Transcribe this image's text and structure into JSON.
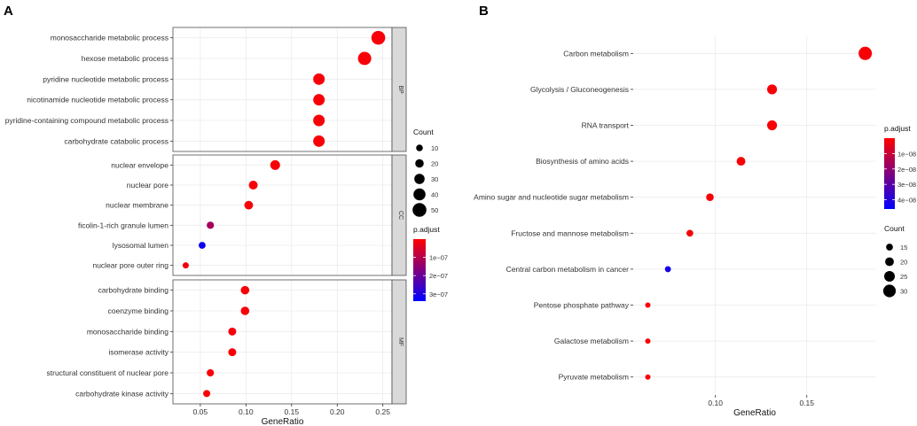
{
  "panels": {
    "A": {
      "letter": "A"
    },
    "B": {
      "letter": "B"
    }
  },
  "colors": {
    "low_padj": "#ff0000",
    "high_padj": "#0000ff",
    "grid": "#ebebeb",
    "panel_border": "#4d4d4d",
    "strip_fill": "#d9d9d9"
  },
  "chart_data": [
    {
      "id": "A",
      "type": "scatter",
      "title": "",
      "xlabel": "GeneRatio",
      "ylabel": "",
      "xlim": [
        0.02,
        0.26
      ],
      "xticks": [
        0.05,
        0.1,
        0.15,
        0.2,
        0.25
      ],
      "xtick_labels": [
        "0.05",
        "0.10",
        "0.15",
        "0.20",
        "0.25"
      ],
      "facets": [
        {
          "strip": "BP",
          "points": [
            {
              "term": "monosaccharide metabolic process",
              "x": 0.245,
              "count": 50,
              "padj": 1e-08
            },
            {
              "term": "hexose metabolic process",
              "x": 0.23,
              "count": 47,
              "padj": 1e-08
            },
            {
              "term": "pyridine nucleotide metabolic process",
              "x": 0.18,
              "count": 37,
              "padj": 1e-08
            },
            {
              "term": "nicotinamide nucleotide metabolic process",
              "x": 0.18,
              "count": 37,
              "padj": 1e-08
            },
            {
              "term": "pyridine-containing compound metabolic process",
              "x": 0.18,
              "count": 37,
              "padj": 1e-08
            },
            {
              "term": "carbohydrate catabolic process",
              "x": 0.18,
              "count": 37,
              "padj": 1e-08
            }
          ]
        },
        {
          "strip": "CC",
          "points": [
            {
              "term": "nuclear envelope",
              "x": 0.132,
              "count": 27,
              "padj": 1e-08
            },
            {
              "term": "nuclear pore",
              "x": 0.108,
              "count": 22,
              "padj": 1e-08
            },
            {
              "term": "nuclear membrane",
              "x": 0.103,
              "count": 21,
              "padj": 1e-08
            },
            {
              "term": "ficolin-1-rich granule lumen",
              "x": 0.061,
              "count": 13,
              "padj": 1.2e-07
            },
            {
              "term": "lysosomal lumen",
              "x": 0.052,
              "count": 11,
              "padj": 3.2e-07
            },
            {
              "term": "nuclear pore outer ring",
              "x": 0.034,
              "count": 7,
              "padj": 2e-08
            }
          ]
        },
        {
          "strip": "MF",
          "points": [
            {
              "term": "carbohydrate binding",
              "x": 0.099,
              "count": 20,
              "padj": 1e-08
            },
            {
              "term": "coenzyme binding",
              "x": 0.099,
              "count": 20,
              "padj": 1e-08
            },
            {
              "term": "monosaccharide binding",
              "x": 0.085,
              "count": 17,
              "padj": 1e-08
            },
            {
              "term": "isomerase activity",
              "x": 0.085,
              "count": 17,
              "padj": 1e-08
            },
            {
              "term": "structural constituent of nuclear pore",
              "x": 0.061,
              "count": 13,
              "padj": 1e-08
            },
            {
              "term": "carbohydrate kinase activity",
              "x": 0.057,
              "count": 12,
              "padj": 1e-08
            }
          ]
        }
      ],
      "legend_count": {
        "title": "Count",
        "min": 7,
        "max": 50,
        "values": [
          10,
          20,
          30,
          40,
          50
        ],
        "labels": [
          "10",
          "20",
          "30",
          "40",
          "50"
        ]
      },
      "legend_color": {
        "title": "p.adjust",
        "min": 0,
        "max": 3.4e-07,
        "values": [
          1e-07,
          2e-07,
          3e-07
        ],
        "labels": [
          "1e−07",
          "2e−07",
          "3e−07"
        ]
      }
    },
    {
      "id": "B",
      "type": "scatter",
      "title": "",
      "xlabel": "GeneRatio",
      "ylabel": "",
      "xlim": [
        0.055,
        0.188
      ],
      "xticks": [
        0.1,
        0.15
      ],
      "xtick_labels": [
        "0.10",
        "0.15"
      ],
      "points": [
        {
          "term": "Carbon metabolism",
          "x": 0.182,
          "count": 32,
          "padj": 1e-09
        },
        {
          "term": "Glycolysis / Gluconeogenesis",
          "x": 0.131,
          "count": 23,
          "padj": 1e-09
        },
        {
          "term": "RNA transport",
          "x": 0.131,
          "count": 23,
          "padj": 1e-09
        },
        {
          "term": "Biosynthesis of amino acids",
          "x": 0.114,
          "count": 20,
          "padj": 1e-09
        },
        {
          "term": "Amino sugar and nucleotide sugar metabolism",
          "x": 0.097,
          "count": 17,
          "padj": 1e-09
        },
        {
          "term": "Fructose and mannose metabolism",
          "x": 0.086,
          "count": 15,
          "padj": 1e-09
        },
        {
          "term": "Central carbon metabolism in cancer",
          "x": 0.074,
          "count": 13,
          "padj": 4.2e-08
        },
        {
          "term": "Pentose phosphate pathway",
          "x": 0.063,
          "count": 11,
          "padj": 1e-09
        },
        {
          "term": "Galactose metabolism",
          "x": 0.063,
          "count": 11,
          "padj": 1e-09
        },
        {
          "term": "Pyruvate metabolism",
          "x": 0.063,
          "count": 11,
          "padj": 1e-09
        }
      ],
      "legend_color": {
        "title": "p.adjust",
        "min": 0,
        "max": 4.6e-08,
        "values": [
          1e-08,
          2e-08,
          3e-08,
          4e-08
        ],
        "labels": [
          "1e−08",
          "2e−08",
          "3e−08",
          "4e−08"
        ]
      },
      "legend_count": {
        "title": "Count",
        "min": 11,
        "max": 32,
        "values": [
          15,
          20,
          25,
          30
        ],
        "labels": [
          "15",
          "20",
          "25",
          "30"
        ]
      }
    }
  ]
}
